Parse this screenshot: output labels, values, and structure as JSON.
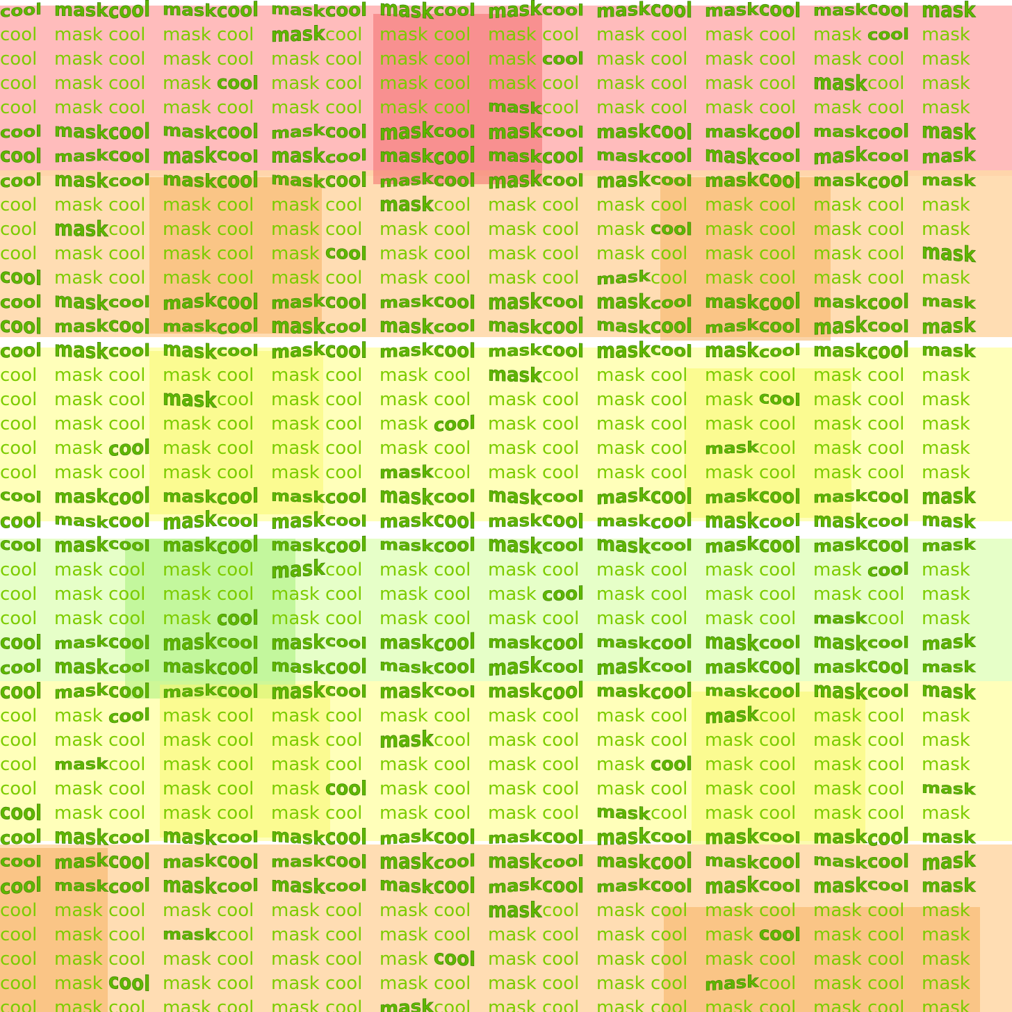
{
  "pattern": {
    "words": [
      "cool",
      "mask"
    ],
    "text_color": "#7ccc00",
    "warp_text_color": "#5fb800"
  },
  "colors": {
    "red_band": "#ffb3b3",
    "red_patch": "#f26b6b",
    "orange_band": "#ffd8a8",
    "orange_patch": "#f5b060",
    "yellow_band": "#ffffb0",
    "yellow_patch": "#f7f770",
    "green_band": "#e2ffc0",
    "green_patch": "#a6f07a",
    "background": "#ffffff"
  }
}
